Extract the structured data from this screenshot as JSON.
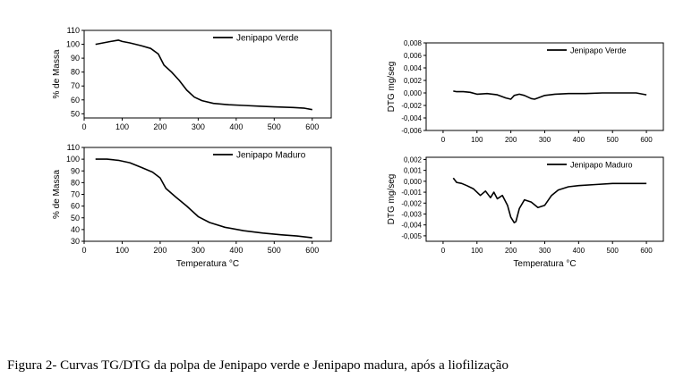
{
  "caption": "Figura 2- Curvas TG/DTG da polpa de Jenipapo verde e Jenipapo madura, após a liofilização",
  "chart_data": [
    {
      "type": "line",
      "panel": "top-left",
      "ylabel": "% de Massa",
      "xlabel": "",
      "xlim": [
        0,
        650
      ],
      "ylim": [
        47,
        110
      ],
      "xticks": [
        0,
        100,
        200,
        300,
        400,
        500,
        600
      ],
      "xticklabels": [
        "0",
        "100",
        "200",
        "300",
        "400",
        "500",
        "600"
      ],
      "yticks": [
        50,
        60,
        70,
        80,
        90,
        100,
        110
      ],
      "yticklabels": [
        "50",
        "60",
        "70",
        "80",
        "90",
        "100",
        "110"
      ],
      "legend_position": "top-right",
      "grid": false,
      "series": [
        {
          "name": "Jenipapo Verde",
          "x": [
            30,
            50,
            70,
            90,
            100,
            120,
            150,
            175,
            195,
            210,
            230,
            250,
            270,
            290,
            310,
            340,
            380,
            420,
            460,
            500,
            550,
            580,
            600
          ],
          "y": [
            100,
            101,
            102,
            103,
            102,
            101,
            99,
            97,
            93,
            85,
            80,
            74,
            67,
            62,
            59.5,
            57.5,
            56.5,
            56,
            55.5,
            55,
            54.5,
            54,
            53
          ]
        }
      ]
    },
    {
      "type": "line",
      "panel": "bottom-left",
      "ylabel": "% de Massa",
      "xlabel": "Temperatura °C",
      "xlim": [
        0,
        650
      ],
      "ylim": [
        30,
        110
      ],
      "xticks": [
        0,
        100,
        200,
        300,
        400,
        500,
        600
      ],
      "xticklabels": [
        "0",
        "100",
        "200",
        "300",
        "400",
        "500",
        "600"
      ],
      "yticks": [
        30,
        40,
        50,
        60,
        70,
        80,
        90,
        100,
        110
      ],
      "yticklabels": [
        "30",
        "40",
        "50",
        "60",
        "70",
        "80",
        "90",
        "100",
        "110"
      ],
      "legend_position": "top-right",
      "grid": false,
      "series": [
        {
          "name": "Jenipapo Maduro",
          "x": [
            30,
            60,
            90,
            120,
            150,
            180,
            200,
            215,
            240,
            270,
            300,
            330,
            370,
            420,
            470,
            520,
            560,
            600
          ],
          "y": [
            100,
            100,
            99,
            97,
            93,
            89,
            84,
            75,
            68,
            60,
            51,
            46,
            42,
            39,
            37,
            35.5,
            34.5,
            33
          ]
        }
      ]
    },
    {
      "type": "line",
      "panel": "top-right",
      "ylabel": "DTG mg/seg",
      "xlabel": "",
      "xlim": [
        -50,
        650
      ],
      "ylim": [
        -0.006,
        0.008
      ],
      "xticks": [
        0,
        100,
        200,
        300,
        400,
        500,
        600
      ],
      "xticklabels": [
        "0",
        "100",
        "200",
        "300",
        "400",
        "500",
        "600"
      ],
      "yticks": [
        -0.006,
        -0.004,
        -0.002,
        0.0,
        0.002,
        0.004,
        0.006,
        0.008
      ],
      "yticklabels": [
        "-0,006",
        "-0,004",
        "-0,002",
        "0,000",
        "0,002",
        "0,004",
        "0,006",
        "0,008"
      ],
      "legend_position": "top-right",
      "grid": false,
      "series": [
        {
          "name": "Jenipapo Verde",
          "x": [
            30,
            40,
            60,
            80,
            100,
            130,
            160,
            185,
            200,
            210,
            225,
            240,
            260,
            270,
            280,
            300,
            330,
            370,
            420,
            470,
            520,
            570,
            600
          ],
          "y": [
            0.0003,
            0.0002,
            0.0002,
            0.0001,
            -0.0002,
            -0.0001,
            -0.0003,
            -0.0008,
            -0.001,
            -0.0004,
            -0.0002,
            -0.0004,
            -0.0009,
            -0.001,
            -0.0008,
            -0.0004,
            -0.0002,
            -0.0001,
            -0.0001,
            0.0,
            0.0,
            0.0,
            -0.0003
          ]
        }
      ]
    },
    {
      "type": "line",
      "panel": "bottom-right",
      "ylabel": "DTG mg/seg",
      "xlabel": "Temperatura °C",
      "xlim": [
        -50,
        650
      ],
      "ylim": [
        -0.0055,
        0.0022
      ],
      "xticks": [
        0,
        100,
        200,
        300,
        400,
        500,
        600
      ],
      "xticklabels": [
        "0",
        "100",
        "200",
        "300",
        "400",
        "500",
        "600"
      ],
      "yticks": [
        -0.005,
        -0.004,
        -0.003,
        -0.002,
        -0.001,
        0.0,
        0.001,
        0.002
      ],
      "yticklabels": [
        "-0,005",
        "-0,004",
        "-0,003",
        "-0,002",
        "-0,001",
        "0,000",
        "0,001",
        "0,002"
      ],
      "legend_position": "top-right",
      "grid": false,
      "series": [
        {
          "name": "Jenipapo Maduro",
          "x": [
            30,
            40,
            55,
            70,
            90,
            110,
            125,
            140,
            150,
            160,
            175,
            190,
            200,
            210,
            215,
            225,
            240,
            260,
            280,
            300,
            320,
            340,
            370,
            400,
            450,
            500,
            550,
            600
          ],
          "y": [
            0.0003,
            -0.0001,
            -0.0002,
            -0.0004,
            -0.0007,
            -0.0013,
            -0.0009,
            -0.0015,
            -0.001,
            -0.0016,
            -0.0013,
            -0.0022,
            -0.0033,
            -0.0038,
            -0.0037,
            -0.0025,
            -0.0017,
            -0.0019,
            -0.0024,
            -0.0022,
            -0.0013,
            -0.0008,
            -0.0005,
            -0.0004,
            -0.0003,
            -0.0002,
            -0.0002,
            -0.0002
          ]
        }
      ]
    }
  ]
}
